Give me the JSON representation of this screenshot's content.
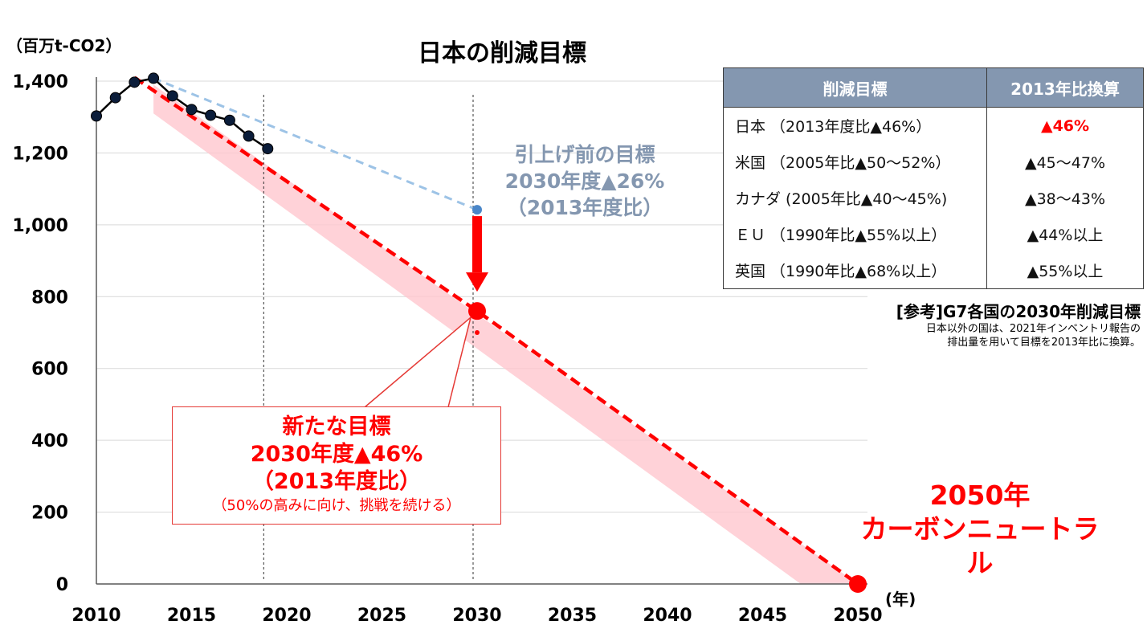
{
  "chart_data": {
    "type": "line",
    "title": "日本の削減目標",
    "y_unit_label": "（百万t-CO2）",
    "x_unit_label": "(年)",
    "xlim": [
      2010,
      2050
    ],
    "ylim": [
      0,
      1400
    ],
    "x_ticks": [
      2010,
      2015,
      2020,
      2025,
      2030,
      2035,
      2040,
      2045,
      2050
    ],
    "x_tick_labels": [
      "2010",
      "2015",
      "2020",
      "2025",
      "2030",
      "2035",
      "2040",
      "2045",
      "2050"
    ],
    "y_ticks": [
      0,
      200,
      400,
      600,
      800,
      1000,
      1200,
      1400
    ],
    "y_tick_labels": [
      "0",
      "200",
      "400",
      "600",
      "800",
      "1,000",
      "1,200",
      "1,400"
    ],
    "grid": "horizontal",
    "series": [
      {
        "style": "black line with markers",
        "x": [
          2010,
          2011,
          2012,
          2013,
          2014,
          2015,
          2016,
          2017,
          2018,
          2019
        ],
        "y": [
          1303,
          1354,
          1397,
          1408,
          1359,
          1321,
          1305,
          1291,
          1247,
          1212
        ]
      },
      {
        "style": "light blue dashed",
        "x": [
          2013,
          2030
        ],
        "y": [
          1408,
          1042
        ]
      },
      {
        "style": "red dashed",
        "x": [
          2012,
          2030,
          2050
        ],
        "y": [
          1410,
          760,
          0
        ]
      }
    ],
    "reference_lines_x": [
      2019,
      2030
    ],
    "annotations": {
      "prev_target": [
        "引上げ前の目標",
        "2030年度▲26%",
        "（2013年度比）"
      ],
      "new_target": [
        "新たな目標",
        "2030年度▲46%",
        "（2013年度比）",
        "（50%の高みに向け、挑戦を続ける）"
      ],
      "neutral": [
        "2050年",
        "カーボンニュートラル"
      ]
    }
  },
  "ref_table": {
    "headers": [
      "削減目標",
      "2013年比換算"
    ],
    "rows": [
      [
        "日本 （2013年度比▲46%）",
        "▲46%"
      ],
      [
        "米国 （2005年比▲50～52%）",
        "▲45～47%"
      ],
      [
        "カナダ (2005年比▲40～45%)",
        "▲38～43%"
      ],
      [
        "ＥＵ （1990年比▲55%以上）",
        "▲44%以上"
      ],
      [
        "英国 （1990年比▲68%以上）",
        "▲55%以上"
      ]
    ],
    "caption": "[参考]G7各国の2030年削減目標",
    "note_line1": "日本以外の国は、2021年インベントリ報告の",
    "note_line2": "排出量を用いて目標を2013年比に換算。"
  },
  "colors": {
    "red": "#ff0000",
    "blue_dash": "#9dc3e6",
    "blue_point": "#4a86c8",
    "header_bg": "#8497b0",
    "text_blue_gray": "#8497b0",
    "band": "#ffc7ce"
  }
}
